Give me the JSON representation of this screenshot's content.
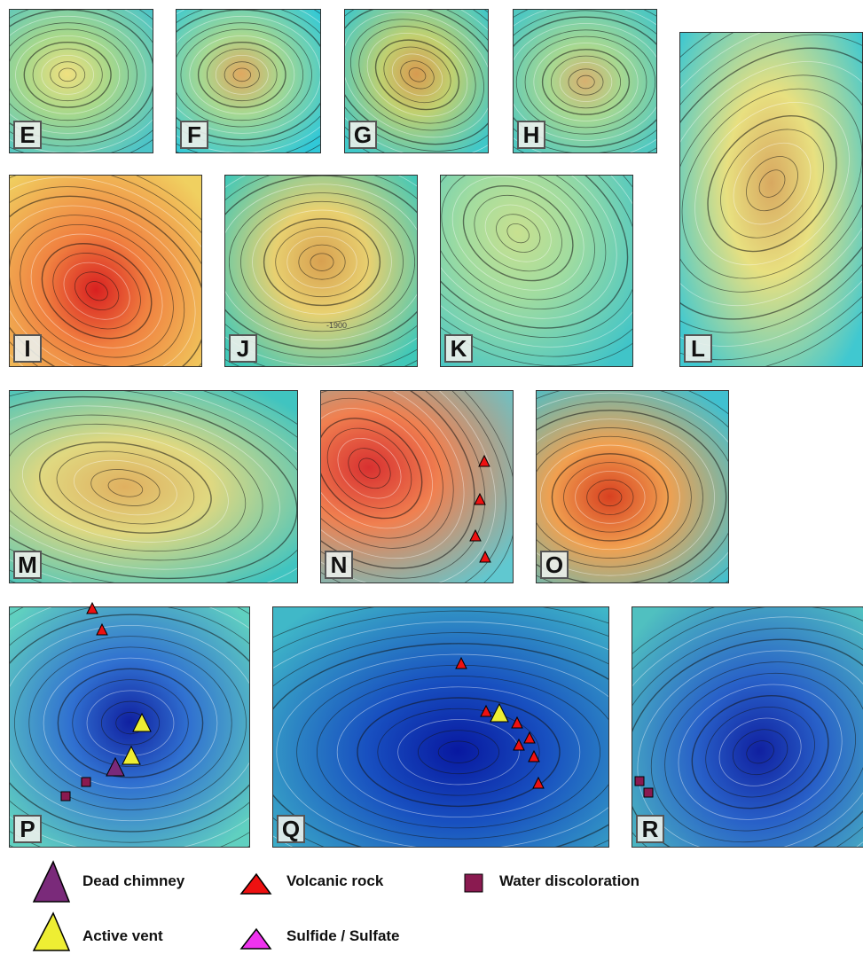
{
  "panels": [
    {
      "label": "E"
    },
    {
      "label": "F"
    },
    {
      "label": "G"
    },
    {
      "label": "H"
    },
    {
      "label": "L"
    },
    {
      "label": "I"
    },
    {
      "label": "J"
    },
    {
      "label": "K"
    },
    {
      "label": "M"
    },
    {
      "label": "N"
    },
    {
      "label": "O"
    },
    {
      "label": "P"
    },
    {
      "label": "Q"
    },
    {
      "label": "R"
    }
  ],
  "annotations": [
    {
      "text": "-1900"
    }
  ],
  "legend": [
    {
      "label": "Dead chimney"
    },
    {
      "label": "Volcanic rock"
    },
    {
      "label": "Water discoloration"
    },
    {
      "label": "Active vent"
    },
    {
      "label": "Sulfide / Sulfate"
    }
  ]
}
